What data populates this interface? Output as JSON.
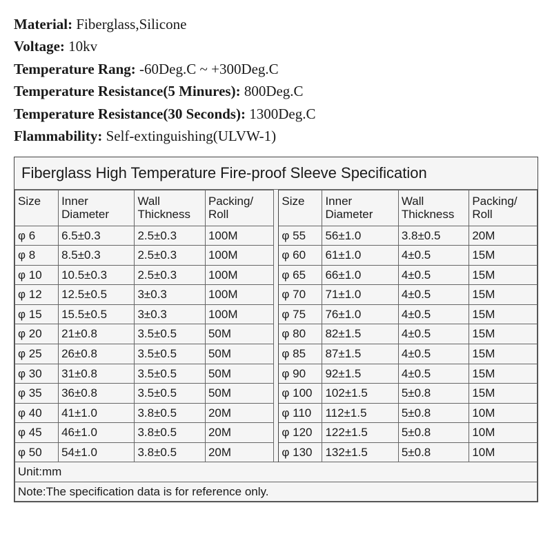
{
  "specs": [
    {
      "label": "Material:",
      "value": " Fiberglass,Silicone"
    },
    {
      "label": "Voltage:",
      "value": " 10kv"
    },
    {
      "label": "Temperature Rang:",
      "value": " -60Deg.C ~ +300Deg.C"
    },
    {
      "label": "Temperature Resistance(5 Minures):",
      "value": " 800Deg.C"
    },
    {
      "label": "Temperature Resistance(30 Seconds):",
      "value": " 1300Deg.C"
    },
    {
      "label": "Flammability:",
      "value": " Self-extinguishing(ULVW-1)"
    }
  ],
  "table": {
    "title": "Fiberglass High Temperature Fire-proof Sleeve Specification",
    "headers": [
      "Size",
      "Inner Diameter",
      "Wall Thickness",
      "Packing/ Roll"
    ],
    "left": [
      [
        "φ 6",
        "6.5±0.3",
        "2.5±0.3",
        "100M"
      ],
      [
        "φ 8",
        "8.5±0.3",
        "2.5±0.3",
        "100M"
      ],
      [
        "φ 10",
        "10.5±0.3",
        "2.5±0.3",
        "100M"
      ],
      [
        "φ 12",
        "12.5±0.5",
        "3±0.3",
        "100M"
      ],
      [
        "φ 15",
        "15.5±0.5",
        "3±0.3",
        "100M"
      ],
      [
        "φ 20",
        "21±0.8",
        "3.5±0.5",
        "50M"
      ],
      [
        "φ 25",
        "26±0.8",
        "3.5±0.5",
        "50M"
      ],
      [
        "φ 30",
        "31±0.8",
        "3.5±0.5",
        "50M"
      ],
      [
        "φ 35",
        "36±0.8",
        "3.5±0.5",
        "50M"
      ],
      [
        "φ 40",
        "41±1.0",
        "3.8±0.5",
        "20M"
      ],
      [
        "φ 45",
        "46±1.0",
        "3.8±0.5",
        "20M"
      ],
      [
        "φ 50",
        "54±1.0",
        "3.8±0.5",
        "20M"
      ]
    ],
    "right": [
      [
        "φ 55",
        "56±1.0",
        "3.8±0.5",
        "20M"
      ],
      [
        "φ 60",
        "61±1.0",
        "4±0.5",
        "15M"
      ],
      [
        "φ 65",
        "66±1.0",
        "4±0.5",
        "15M"
      ],
      [
        "φ 70",
        "71±1.0",
        "4±0.5",
        "15M"
      ],
      [
        "φ 75",
        "76±1.0",
        "4±0.5",
        "15M"
      ],
      [
        "φ 80",
        "82±1.5",
        "4±0.5",
        "15M"
      ],
      [
        "φ 85",
        "87±1.5",
        "4±0.5",
        "15M"
      ],
      [
        "φ 90",
        "92±1.5",
        "4±0.5",
        "15M"
      ],
      [
        "φ 100",
        "102±1.5",
        "5±0.8",
        "15M"
      ],
      [
        "φ 110",
        "112±1.5",
        "5±0.8",
        "10M"
      ],
      [
        "φ 120",
        "122±1.5",
        "5±0.8",
        "10M"
      ],
      [
        "φ 130",
        "132±1.5",
        "5±0.8",
        "10M"
      ]
    ],
    "unit": "Unit:mm",
    "note": "Note:The specification data is for reference only."
  },
  "colors": {
    "text": "#1a1a1a",
    "border": "#666666",
    "outer_border": "#444444",
    "cell_bg": "#f5f5f5",
    "page_bg": "#ffffff"
  }
}
